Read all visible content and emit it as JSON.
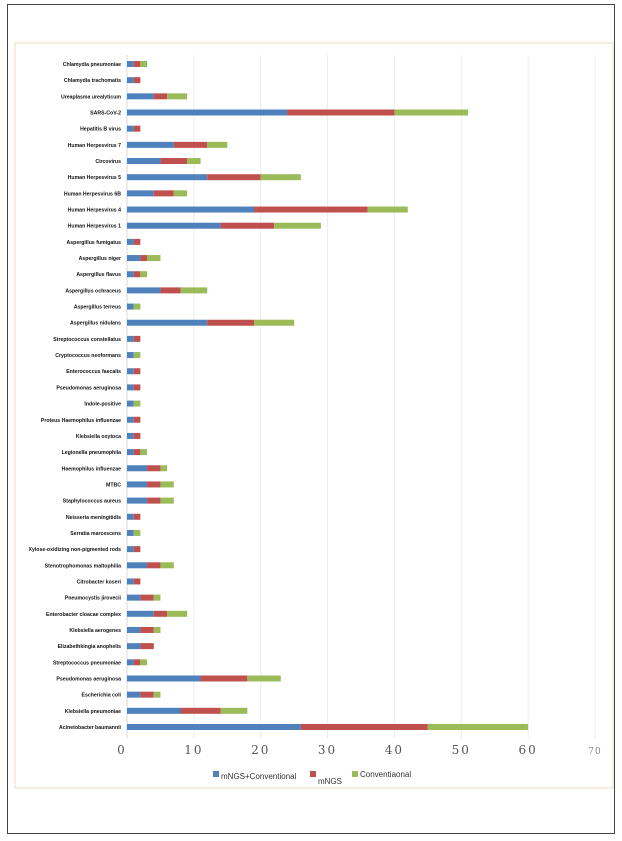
{
  "chart_data": {
    "type": "bar",
    "stacked": true,
    "orientation": "horizontal",
    "title": "",
    "xlabel": "",
    "ylabel": "",
    "xlim": [
      0,
      70
    ],
    "x_ticks": [
      "0",
      "10",
      "20",
      "30",
      "40",
      "50",
      "60",
      "70"
    ],
    "grid": true,
    "legend_position": "bottom",
    "categories": [
      "Chlamydia pneumoniae",
      "Chlamydia trachomatis",
      "Ureaplasma urealyticum",
      "SARS-CoV-2",
      "Hepatitis B virus",
      "Human Herpesvirus 7",
      "Circovirus",
      "Human Herpesvirus 5",
      "Human Herpesvirus 6B",
      "Human Herpesvirus 4",
      "Human Herpesvirus 1",
      "Aspergillus fumigatus",
      "Aspergillus niger",
      "Aspergillus flavus",
      "Aspergillus ochraceus",
      "Aspergillus terreus",
      "Aspergillus nidulans",
      "Streptococcus constellatus",
      "Cryptococcus neoformans",
      "Enterococcus faecalis",
      "Pseudomonas aeruginosa",
      "Indole-positive",
      "Proteus Haemophilus influenzae",
      "Klebsiella oxytoca",
      "Legionella pneumophila",
      "Haemophilus influenzae",
      "MTBC",
      "Staphylococcus aureus",
      "Neisseria meningitidis",
      "Serratia marcescens",
      "Xylose-oxidizing non-pigmented rods",
      "Stenotrophomonas maltophilia",
      "Citrobacter koseri",
      "Pneumocystis jirovecii",
      "Enterobacter cloacae complex",
      "Klebsiella aerogenes",
      "Elizabethkingia anophelis",
      "Streptococcus pneumoniae",
      "Pseudomonas aeruginosa",
      "Escherichia coli",
      "Klebsiella pneumoniae",
      "Acinetobacter baumannii"
    ],
    "series": [
      {
        "name": "mNGS+Conventional",
        "color": "#4f81bd",
        "values": [
          1,
          1,
          4,
          24,
          1,
          7,
          5,
          12,
          4,
          19,
          14,
          1,
          2,
          1,
          5,
          1,
          12,
          1,
          1,
          1,
          1,
          1,
          1,
          1,
          1,
          3,
          3,
          3,
          1,
          1,
          1,
          3,
          1,
          2,
          4,
          2,
          2,
          1,
          11,
          2,
          8,
          26
        ]
      },
      {
        "name": "mNGS",
        "color": "#c0504d",
        "values": [
          1,
          1,
          2,
          16,
          1,
          5,
          4,
          8,
          3,
          17,
          8,
          1,
          1,
          1,
          3,
          0,
          7,
          1,
          0,
          1,
          1,
          0,
          1,
          1,
          1,
          2,
          2,
          2,
          1,
          0,
          1,
          2,
          1,
          2,
          2,
          2,
          2,
          1,
          7,
          2,
          6,
          19
        ]
      },
      {
        "name": "Conventiaonal",
        "color": "#9bbb59",
        "values": [
          1,
          0,
          3,
          11,
          0,
          3,
          2,
          6,
          2,
          6,
          7,
          0,
          2,
          1,
          4,
          1,
          6,
          0,
          1,
          0,
          0,
          1,
          0,
          0,
          1,
          1,
          2,
          2,
          0,
          1,
          0,
          2,
          0,
          1,
          3,
          1,
          0,
          1,
          5,
          1,
          4,
          15
        ]
      }
    ]
  }
}
